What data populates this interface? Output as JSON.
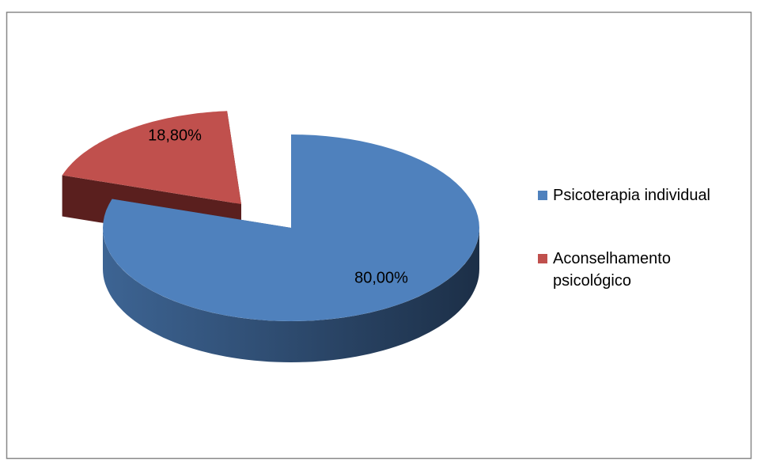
{
  "chart_data": {
    "type": "pie",
    "categories": [
      "Psicoterapia individual",
      "Aconselhamento psicológico"
    ],
    "values": [
      80,
      18.8
    ],
    "value_labels": [
      "80,00%",
      "18,80%"
    ],
    "colors": [
      "#4f81bd",
      "#c0504d"
    ],
    "legend": "right"
  }
}
